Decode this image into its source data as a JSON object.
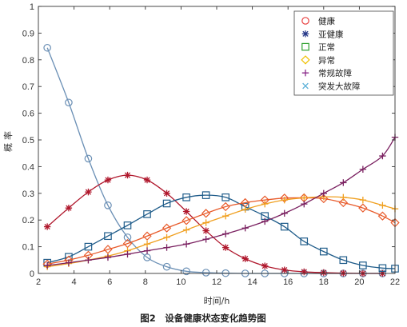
{
  "chart_data": {
    "type": "line",
    "caption": "图2　设备健康状态变化趋势图",
    "xlabel": "时间/h",
    "ylabel": "概率",
    "xlim": [
      2,
      22
    ],
    "ylim": [
      0,
      1
    ],
    "xticks": [
      2,
      4,
      6,
      8,
      10,
      12,
      14,
      16,
      18,
      20,
      22
    ],
    "xtick_labels": [
      "2",
      "4",
      "6",
      "8",
      "10",
      "12",
      "14",
      "16",
      "18",
      "20",
      "22"
    ],
    "yticks": [
      0,
      0.1,
      0.2,
      0.3,
      0.4,
      0.5,
      0.6,
      0.7,
      0.8,
      0.9,
      1
    ],
    "ytick_labels": [
      "0",
      "0.1",
      "0.2",
      "0.3",
      "0.4",
      "0.5",
      "0.6",
      "0.7",
      "0.8",
      "0.9",
      "1"
    ],
    "grid": false,
    "legend_position": "top-right",
    "series": [
      {
        "name": "健康",
        "color": "#6a8fb5",
        "marker": "circle",
        "x": [
          2.5,
          3.7,
          4.8,
          5.9,
          7,
          8.1,
          9.2,
          10.3,
          11.4,
          12.5,
          13.6,
          14.7,
          15.8,
          16.9,
          18,
          19.1,
          20.2,
          21.3
        ],
        "y": [
          0.845,
          0.64,
          0.43,
          0.255,
          0.135,
          0.06,
          0.025,
          0.008,
          0.003,
          0.001,
          0,
          0,
          0,
          0,
          0,
          0,
          0,
          0
        ]
      },
      {
        "name": "亚健康",
        "color": "#b0182d",
        "marker": "asterisk",
        "x": [
          2.5,
          3.7,
          4.8,
          5.9,
          7,
          8.1,
          9.2,
          10.3,
          11.4,
          12.5,
          13.6,
          14.7,
          15.8,
          16.9,
          18,
          19.1,
          20.2,
          21.3
        ],
        "y": [
          0.175,
          0.245,
          0.305,
          0.35,
          0.368,
          0.35,
          0.3,
          0.232,
          0.16,
          0.097,
          0.055,
          0.028,
          0.013,
          0.006,
          0.003,
          0.001,
          0,
          0
        ]
      },
      {
        "name": "正常",
        "color": "#1f5c8a",
        "marker": "square",
        "x": [
          2.5,
          3.7,
          4.8,
          5.9,
          7,
          8.1,
          9.2,
          10.3,
          11.4,
          12.5,
          13.6,
          14.7,
          15.8,
          16.9,
          18,
          19.1,
          20.2,
          21.3,
          22
        ],
        "y": [
          0.04,
          0.062,
          0.1,
          0.14,
          0.18,
          0.222,
          0.262,
          0.285,
          0.293,
          0.285,
          0.25,
          0.215,
          0.175,
          0.12,
          0.082,
          0.05,
          0.03,
          0.02,
          0.018
        ]
      },
      {
        "name": "异常",
        "color": "#e85a2a",
        "marker": "diamond",
        "x": [
          2.5,
          3.7,
          4.8,
          5.9,
          7,
          8.1,
          9.2,
          10.3,
          11.4,
          12.5,
          13.6,
          14.7,
          15.8,
          16.9,
          18,
          19.1,
          20.2,
          21.3,
          22
        ],
        "y": [
          0.035,
          0.05,
          0.068,
          0.09,
          0.112,
          0.14,
          0.17,
          0.198,
          0.225,
          0.25,
          0.265,
          0.275,
          0.282,
          0.283,
          0.28,
          0.265,
          0.245,
          0.215,
          0.19
        ]
      },
      {
        "name": "常规故障",
        "color": "#f0a020",
        "marker": "plus",
        "x": [
          2.5,
          3.7,
          4.8,
          5.9,
          7,
          8.1,
          9.2,
          10.3,
          11.4,
          12.5,
          13.6,
          14.7,
          15.8,
          16.9,
          18,
          19.1,
          20.2,
          21.3,
          22
        ],
        "y": [
          0.025,
          0.037,
          0.05,
          0.065,
          0.085,
          0.11,
          0.135,
          0.163,
          0.19,
          0.215,
          0.24,
          0.26,
          0.275,
          0.283,
          0.287,
          0.285,
          0.275,
          0.255,
          0.242
        ]
      },
      {
        "name": "突发大故障",
        "color": "#7a2060",
        "marker": "plus",
        "x": [
          2.5,
          3.7,
          4.8,
          5.9,
          7,
          8.1,
          9.2,
          10.3,
          11.4,
          12.5,
          13.6,
          14.7,
          15.8,
          16.9,
          18,
          19.1,
          20.2,
          21.3,
          22
        ],
        "y": [
          0.03,
          0.04,
          0.05,
          0.06,
          0.072,
          0.085,
          0.097,
          0.11,
          0.128,
          0.148,
          0.17,
          0.195,
          0.225,
          0.26,
          0.3,
          0.34,
          0.39,
          0.44,
          0.51
        ]
      }
    ],
    "legend_entries": [
      {
        "name": "健康",
        "color": "#e84040",
        "marker": "circle"
      },
      {
        "name": "亚健康",
        "color": "#283a8a",
        "marker": "asterisk"
      },
      {
        "name": "正常",
        "color": "#2fa02f",
        "marker": "square"
      },
      {
        "name": "异常",
        "color": "#f0c000",
        "marker": "diamond"
      },
      {
        "name": "常规故障",
        "color": "#8a2a8a",
        "marker": "plus"
      },
      {
        "name": "突发大故障",
        "color": "#5ab0d8",
        "marker": "cross"
      }
    ]
  }
}
